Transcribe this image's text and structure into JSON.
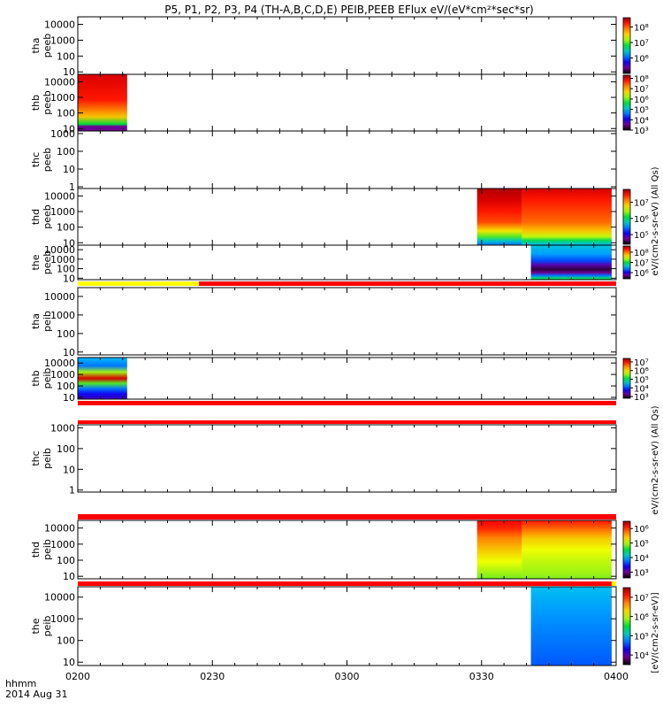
{
  "title": "P5, P1, P2, P3, P4 (TH-A,B,C,D,E) PEIB,PEEB EFlux eV/(eV*cm²*sec*sr)",
  "x_axis": {
    "ticks": [
      "0200",
      "0230",
      "0300",
      "0330",
      "0400"
    ],
    "label_line1": "hhmm",
    "label_line2": "2014 Aug 31"
  },
  "colorbar_labels": {
    "electron": "eV/(cm2-s-sr-eV) (All Qs)",
    "ion": "eV/(cm2-s-sr-eV) (All Qs)",
    "bottom": "[eV/(cm2-s-sr-eV)]"
  },
  "colors": {
    "flag_yellow": "#ffff00",
    "flag_red": "#ff0000",
    "background": "#ffffff"
  },
  "chart_data": {
    "type": "heatmap",
    "x_range": [
      "0200",
      "0400"
    ],
    "scale": "log",
    "panels": [
      {
        "id": "tha-peeb",
        "label": [
          "tha",
          "peeb"
        ],
        "yticks": [
          "10",
          "100",
          "1000",
          "10000"
        ],
        "ylim": [
          7,
          30000
        ],
        "colorbar_ticks": [
          "10⁶",
          "10⁷",
          "10⁸"
        ],
        "colorbar_range": [
          5,
          8.6
        ],
        "blocks": []
      },
      {
        "id": "thb-peeb",
        "label": [
          "thb",
          "peeb"
        ],
        "yticks": [
          "10",
          "100",
          "1000",
          "10000"
        ],
        "ylim": [
          7,
          30000
        ],
        "colorbar_ticks": [
          "10³",
          "10⁴",
          "10⁵",
          "10⁶",
          "10⁷",
          "10⁸"
        ],
        "colorbar_range": [
          3,
          8.3
        ],
        "blocks": [
          {
            "start": "0200",
            "end": "0211",
            "bands": [
              [
                1.0,
                0.95
              ],
              [
                0.55,
                0.9
              ],
              [
                0.25,
                0.72
              ],
              [
                0.12,
                0.5
              ],
              [
                0.08,
                0.1
              ]
            ]
          }
        ]
      },
      {
        "id": "thc-peeb",
        "label": [
          "thc",
          "peeb"
        ],
        "yticks": [
          "1",
          "10",
          "100",
          "1000"
        ],
        "ylim": [
          0.8,
          1400
        ],
        "colorbar_ticks": [],
        "blocks": []
      },
      {
        "id": "thd-peeb",
        "label": [
          "thd",
          "peeb"
        ],
        "yticks": [
          "10",
          "100",
          "1000",
          "10000"
        ],
        "ylim": [
          7,
          30000
        ],
        "colorbar_ticks": [
          "10⁵",
          "10⁶",
          "10⁷"
        ],
        "colorbar_range": [
          4.4,
          7.8
        ],
        "blocks": [
          {
            "start": "0329",
            "end": "0339",
            "bands": [
              [
                1.0,
                0.98
              ],
              [
                0.8,
                0.95
              ],
              [
                0.6,
                0.9
              ],
              [
                0.4,
                0.85
              ],
              [
                0.25,
                0.68
              ],
              [
                0.15,
                0.55
              ],
              [
                0.08,
                0.4
              ],
              [
                0.0,
                0.3
              ]
            ]
          },
          {
            "start": "0339",
            "end": "0359",
            "bands": [
              [
                1.0,
                0.95
              ],
              [
                0.8,
                0.9
              ],
              [
                0.6,
                0.86
              ],
              [
                0.4,
                0.82
              ],
              [
                0.25,
                0.72
              ],
              [
                0.15,
                0.62
              ],
              [
                0.08,
                0.48
              ],
              [
                0.0,
                0.35
              ]
            ]
          }
        ]
      },
      {
        "id": "the-peeb",
        "label": [
          "the",
          "peeb"
        ],
        "yticks": [
          "10",
          "100",
          "1000",
          "10000"
        ],
        "ylim": [
          7,
          30000
        ],
        "colorbar_ticks": [
          "10⁶",
          "10⁷",
          "10⁸"
        ],
        "colorbar_range": [
          5.4,
          8.6
        ],
        "blocks": [
          {
            "start": "0341",
            "end": "0359",
            "bands": [
              [
                1.0,
                0.38
              ],
              [
                0.75,
                0.33
              ],
              [
                0.55,
                0.27
              ],
              [
                0.42,
                0.12
              ],
              [
                0.3,
                0.04
              ],
              [
                0.2,
                0.1
              ],
              [
                0.12,
                0.3
              ],
              [
                0.05,
                0.45
              ],
              [
                0.0,
                0.5
              ]
            ]
          }
        ]
      },
      {
        "id": "tha-peib",
        "label": [
          "tha",
          "peib"
        ],
        "yticks": [
          "10",
          "100",
          "1000",
          "10000"
        ],
        "ylim": [
          7,
          30000
        ],
        "colorbar_ticks": [],
        "blocks": []
      },
      {
        "id": "thb-peib",
        "label": [
          "thb",
          "peib"
        ],
        "yticks": [
          "10",
          "100",
          "1000",
          "10000"
        ],
        "ylim": [
          7,
          30000
        ],
        "colorbar_ticks": [
          "10³",
          "10⁴",
          "10⁵",
          "10⁶",
          "10⁷"
        ],
        "colorbar_range": [
          2.8,
          7.4
        ],
        "blocks": [
          {
            "start": "0200",
            "end": "0211",
            "bands": [
              [
                1.0,
                0.35
              ],
              [
                0.8,
                0.3
              ],
              [
                0.65,
                0.6
              ],
              [
                0.5,
                0.95
              ],
              [
                0.38,
                0.55
              ],
              [
                0.25,
                0.3
              ],
              [
                0.12,
                0.2
              ],
              [
                0.0,
                0.15
              ]
            ]
          }
        ]
      },
      {
        "id": "thc-peib",
        "label": [
          "thc",
          "peib"
        ],
        "yticks": [
          "1",
          "10",
          "100",
          "1000"
        ],
        "ylim": [
          0.8,
          1400
        ],
        "colorbar_ticks": [],
        "blocks": []
      },
      {
        "id": "thd-peib",
        "label": [
          "thd",
          "peib"
        ],
        "yticks": [
          "10",
          "100",
          "1000",
          "10000"
        ],
        "ylim": [
          7,
          30000
        ],
        "colorbar_ticks": [
          "10³",
          "10⁴",
          "10⁵",
          "10⁶"
        ],
        "colorbar_range": [
          2.6,
          6.5
        ],
        "blocks": [
          {
            "start": "0329",
            "end": "0339",
            "bands": [
              [
                1.0,
                0.93
              ],
              [
                0.85,
                0.88
              ],
              [
                0.7,
                0.8
              ],
              [
                0.5,
                0.72
              ],
              [
                0.3,
                0.65
              ],
              [
                0.1,
                0.6
              ],
              [
                0.0,
                0.57
              ]
            ]
          },
          {
            "start": "0339",
            "end": "0359",
            "bands": [
              [
                1.0,
                0.9
              ],
              [
                0.85,
                0.82
              ],
              [
                0.7,
                0.72
              ],
              [
                0.5,
                0.65
              ],
              [
                0.3,
                0.62
              ],
              [
                0.1,
                0.6
              ],
              [
                0.0,
                0.58
              ]
            ]
          }
        ]
      },
      {
        "id": "the-peib",
        "label": [
          "the",
          "peib"
        ],
        "yticks": [
          "10",
          "100",
          "1000",
          "10000"
        ],
        "ylim": [
          7,
          30000
        ],
        "colorbar_ticks": [
          "10⁴",
          "10⁵",
          "10⁶",
          "10⁷"
        ],
        "colorbar_range": [
          3.5,
          7.5
        ],
        "blocks": [
          {
            "start": "0341",
            "end": "0359",
            "bands": [
              [
                1.0,
                0.36
              ],
              [
                0.6,
                0.32
              ],
              [
                0.3,
                0.3
              ],
              [
                0.0,
                0.28
              ]
            ]
          }
        ]
      }
    ],
    "flag_bars": [
      {
        "id": "flag-the-peeb",
        "segments": [
          {
            "start": "0200",
            "end": "0227",
            "color": "yellow"
          },
          {
            "start": "0227",
            "end": "0400",
            "color": "red"
          }
        ]
      },
      {
        "id": "flag-tha-peib",
        "segments": [
          {
            "start": "0200",
            "end": "0400",
            "color": "red"
          }
        ]
      },
      {
        "id": "flag-thb-peib",
        "segments": [
          {
            "start": "0200",
            "end": "0400",
            "color": "red"
          }
        ]
      },
      {
        "id": "flag-thc-peib",
        "segments": [
          {
            "start": "0200",
            "end": "0400",
            "color": "red"
          }
        ]
      },
      {
        "id": "flag-thd-peib",
        "segments": [
          {
            "start": "0200",
            "end": "0359",
            "color": "red"
          },
          {
            "start": "0359",
            "end": "0400",
            "color": "yellow"
          }
        ]
      }
    ]
  }
}
